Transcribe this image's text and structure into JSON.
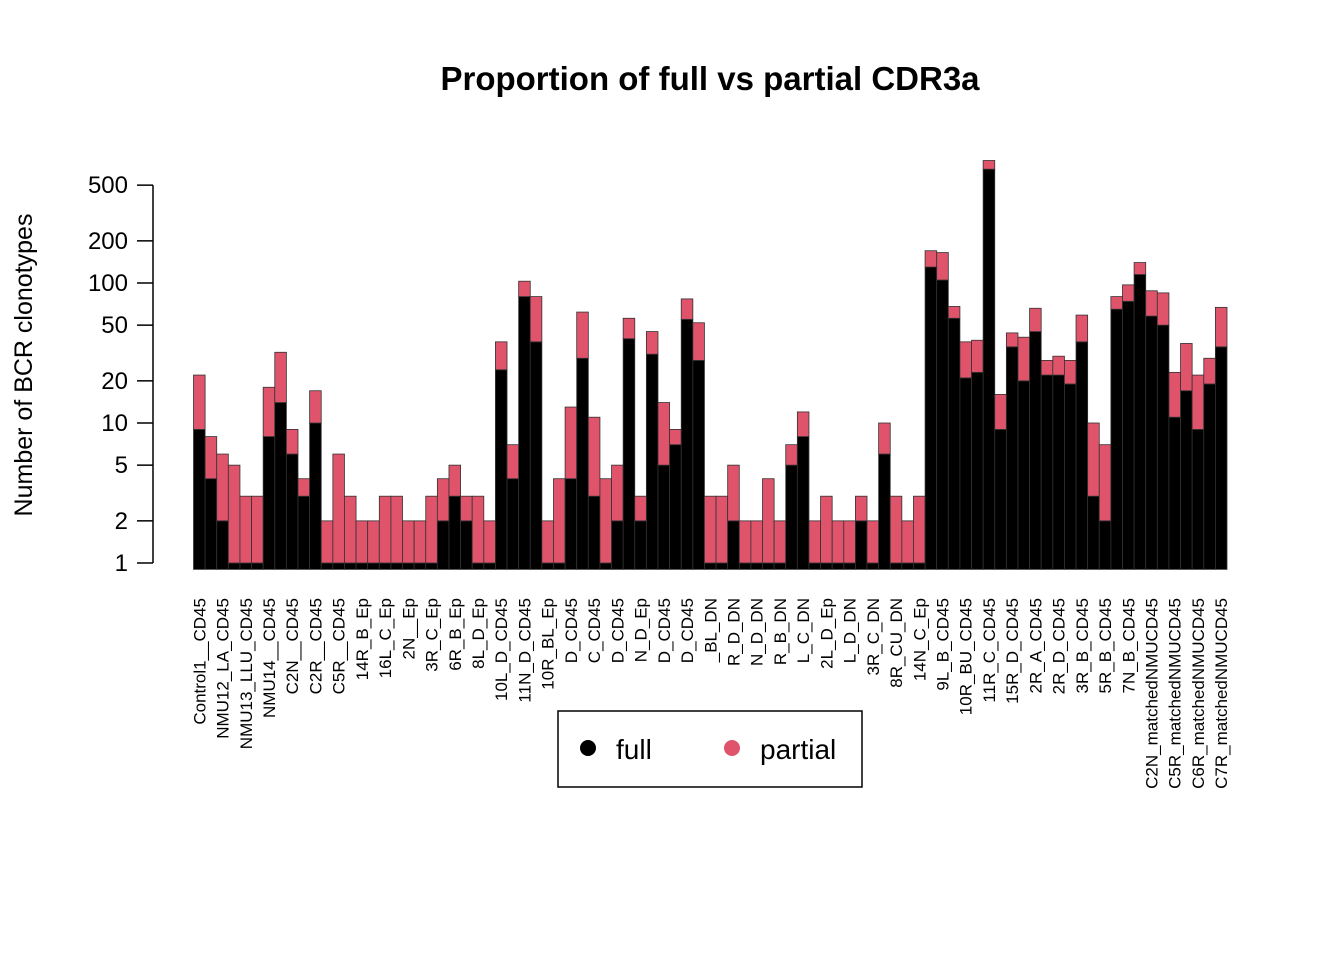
{
  "chart_data": {
    "type": "bar",
    "stacked": true,
    "log_scale": true,
    "title": "Proportion of full vs partial CDR3a",
    "y_label": "Number of BCR clonotypes",
    "legend": "bottom",
    "categories": [
      "Control1__CD45",
      null,
      "NMU12_LA_CD45",
      null,
      "NMU13_LLU_CD45",
      null,
      "NMU14__CD45",
      null,
      "C2N__CD45",
      null,
      "C2R__CD45",
      null,
      "C5R__CD45",
      null,
      "14R_B_Ep",
      null,
      "16L_C_Ep",
      null,
      "2N__Ep",
      null,
      "3R_C_Ep",
      null,
      "6R_B_Ep",
      null,
      "8L_D_Ep",
      null,
      "10L_D_CD45",
      null,
      "11N_D_CD45",
      null,
      "10R_BL_Ep",
      null,
      "D_CD45",
      null,
      "C_CD45",
      null,
      "D_CD45",
      null,
      "N_D_Ep",
      null,
      "D_CD45",
      null,
      "D_CD45",
      null,
      "_BL_DN",
      null,
      "R_D_DN",
      null,
      "N_D_DN",
      null,
      "R_B_DN",
      null,
      "L_C_DN",
      null,
      "2L_D_Ep",
      null,
      "L_D_DN",
      null,
      "3R_C_DN",
      null,
      "8R_CU_DN",
      null,
      "14N_C_Ep",
      null,
      "9L_B_CD45",
      null,
      "10R_BU_CD45",
      null,
      "11R_C_CD45",
      null,
      "15R_D_CD45",
      null,
      "2R_A_CD45",
      null,
      "2R_D_CD45",
      null,
      "3R_B_CD45",
      null,
      "5R_B_CD45",
      null,
      "7N_B_CD45",
      null,
      "C2N_matchedNMUCD45",
      null,
      "C5R_matchedNMUCD45",
      null,
      "C6R_matchedNMUCD45",
      null,
      "C7R_matchedNMUCD45"
    ],
    "series": [
      {
        "name": "full",
        "color": "#000000",
        "values": [
          9,
          4,
          2,
          1,
          1,
          1,
          8,
          14,
          6,
          3,
          10,
          1,
          1,
          1,
          1,
          1,
          1,
          1,
          1,
          1,
          1,
          2,
          3,
          2,
          1,
          1,
          24,
          4,
          80,
          38,
          1,
          1,
          4,
          29,
          3,
          1,
          2,
          40,
          2,
          31,
          5,
          7,
          55,
          28,
          1,
          1,
          2,
          1,
          1,
          1,
          1,
          5,
          8,
          1,
          1,
          1,
          1,
          2,
          1,
          6,
          1,
          1,
          1,
          130,
          105,
          56,
          21,
          23,
          650,
          9,
          35,
          20,
          45,
          22,
          22,
          19,
          38,
          3,
          2,
          65,
          74,
          115,
          58,
          50,
          11,
          17,
          9,
          19,
          35
        ]
      },
      {
        "name": "partial",
        "color": "#DF536B",
        "values": [
          13,
          4,
          4,
          4,
          2,
          2,
          10,
          18,
          3,
          1,
          7,
          1,
          5,
          2,
          1,
          1,
          2,
          2,
          1,
          1,
          2,
          2,
          2,
          1,
          2,
          1,
          14,
          3,
          23,
          42,
          1,
          3,
          9,
          33,
          8,
          3,
          3,
          16,
          1,
          14,
          9,
          2,
          22,
          24,
          2,
          2,
          3,
          1,
          1,
          3,
          1,
          2,
          4,
          1,
          2,
          1,
          1,
          1,
          1,
          4,
          2,
          1,
          2,
          40,
          60,
          12,
          17,
          16,
          100,
          7,
          9,
          21,
          21,
          6,
          8,
          9,
          21,
          7,
          5,
          15,
          23,
          25,
          30,
          35,
          12,
          20,
          13,
          10,
          32
        ]
      }
    ],
    "ylim": [
      0.9,
      1000
    ],
    "yticks": [
      1,
      2,
      5,
      10,
      20,
      50,
      100,
      200,
      500
    ]
  }
}
